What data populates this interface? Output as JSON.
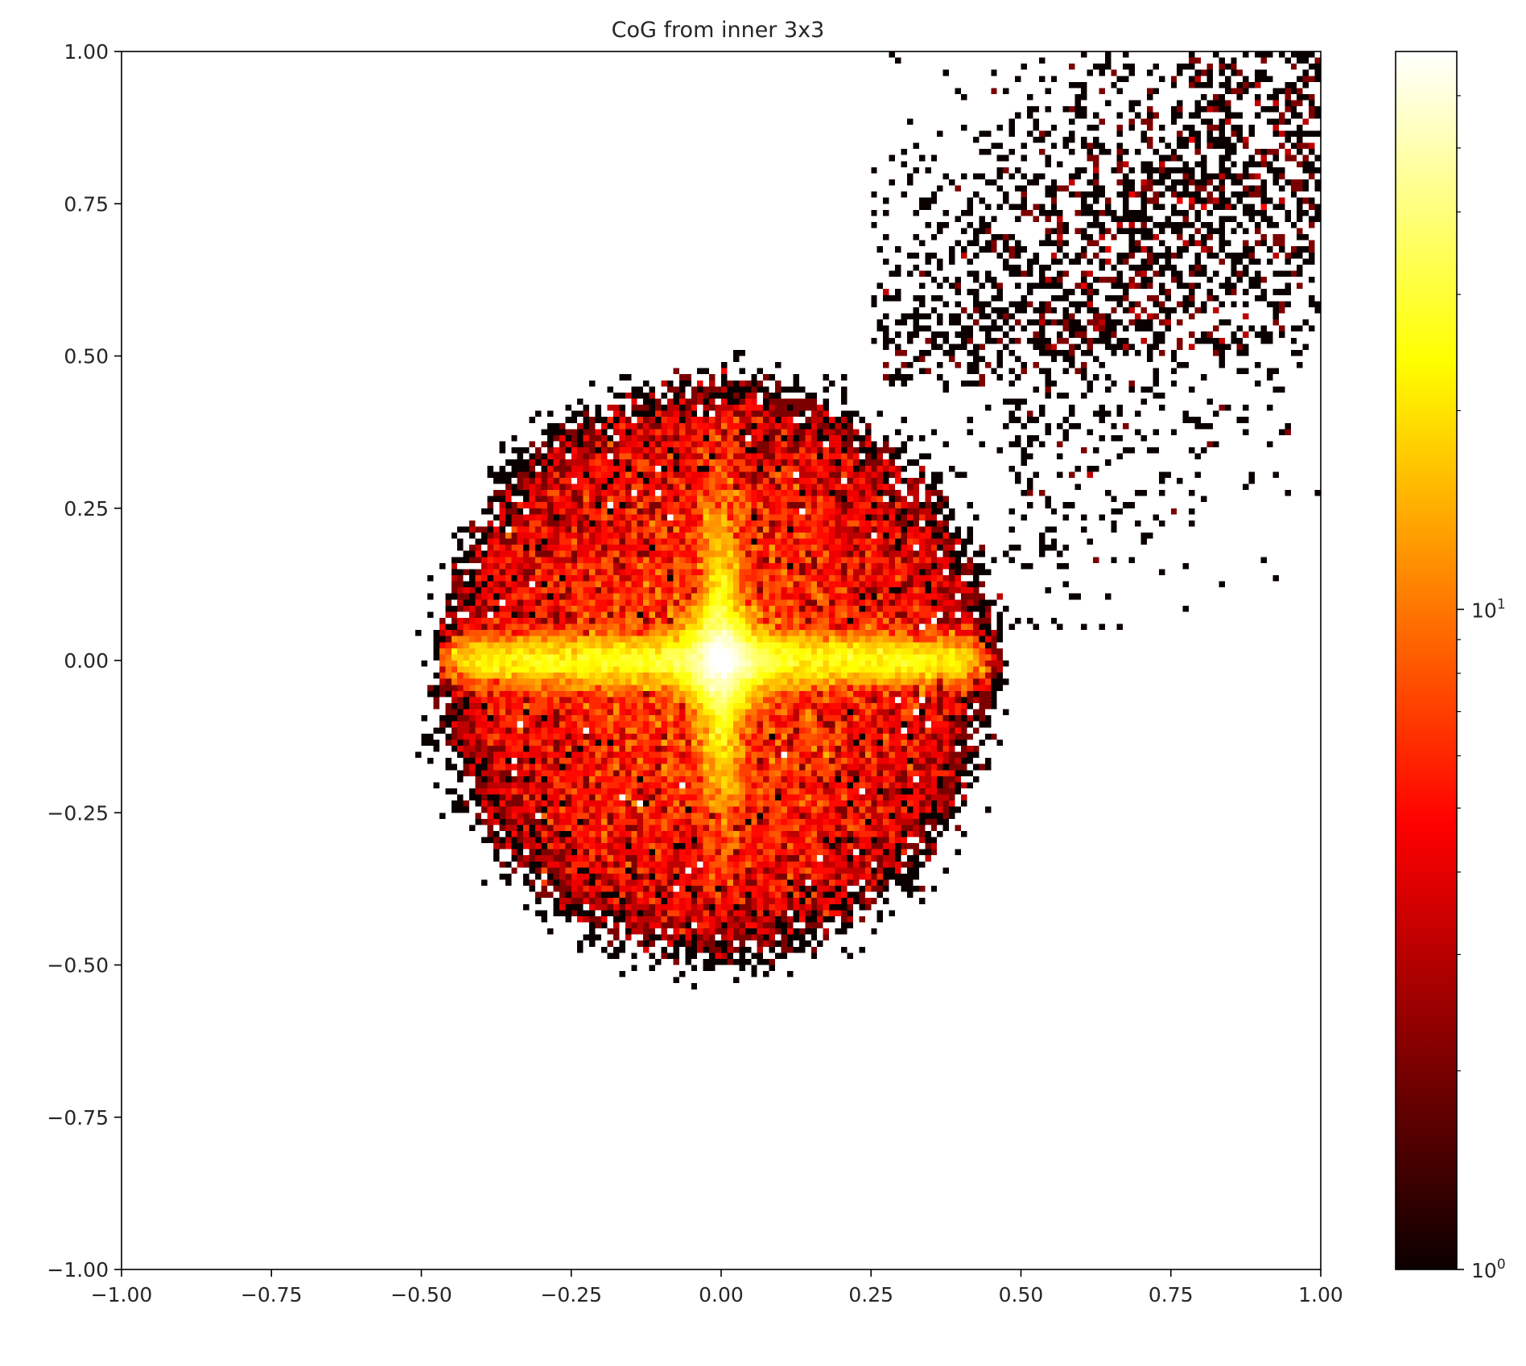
{
  "chart_data": {
    "type": "heatmap",
    "title": "CoG from inner 3x3",
    "xlabel": "",
    "ylabel": "",
    "xlim": [
      -1.0,
      1.0
    ],
    "ylim": [
      -1.0,
      1.0
    ],
    "x_ticks": [
      "−1.00",
      "−0.75",
      "−0.50",
      "−0.25",
      "0.00",
      "0.25",
      "0.50",
      "0.75",
      "1.00"
    ],
    "x_tick_values": [
      -1.0,
      -0.75,
      -0.5,
      -0.25,
      0.0,
      0.25,
      0.5,
      0.75,
      1.0
    ],
    "y_ticks": [
      "1.00",
      "0.75",
      "0.50",
      "0.25",
      "0.00",
      "−0.25",
      "−0.50",
      "−0.75",
      "−1.00"
    ],
    "y_tick_values": [
      1.0,
      0.75,
      0.5,
      0.25,
      0.0,
      -0.25,
      -0.5,
      -0.75,
      -1.0
    ],
    "colormap": "hot",
    "colorbar": {
      "scale": "log",
      "range": [
        1,
        70
      ],
      "tick_labels": [
        {
          "base": "10",
          "exp": "1",
          "value": 10
        },
        {
          "base": "10",
          "exp": "0",
          "value": 1
        }
      ],
      "minor_tick_values": [
        2,
        3,
        4,
        5,
        6,
        7,
        8,
        9,
        20,
        30,
        40,
        50,
        60
      ]
    },
    "grid": false,
    "legend": "none",
    "bins": [
      200,
      200
    ],
    "distribution": {
      "core": {
        "center": [
          0.0,
          0.0
        ],
        "x_extent": [
          -0.47,
          0.45
        ],
        "y_extent": [
          -0.49,
          0.46
        ],
        "peak_count": 60
      },
      "horizontal_band": {
        "y": 0.0,
        "x_extent": [
          -0.45,
          0.45
        ],
        "half_width_y": 0.035
      },
      "vertical_band": {
        "x": 0.0,
        "y_extent": [
          -0.2,
          0.2
        ],
        "half_width_x": 0.03
      },
      "sparse_tail": {
        "x_extent": [
          0.25,
          1.0
        ],
        "y_extent": [
          0.05,
          1.0
        ],
        "count_range": [
          1,
          3
        ]
      }
    }
  }
}
